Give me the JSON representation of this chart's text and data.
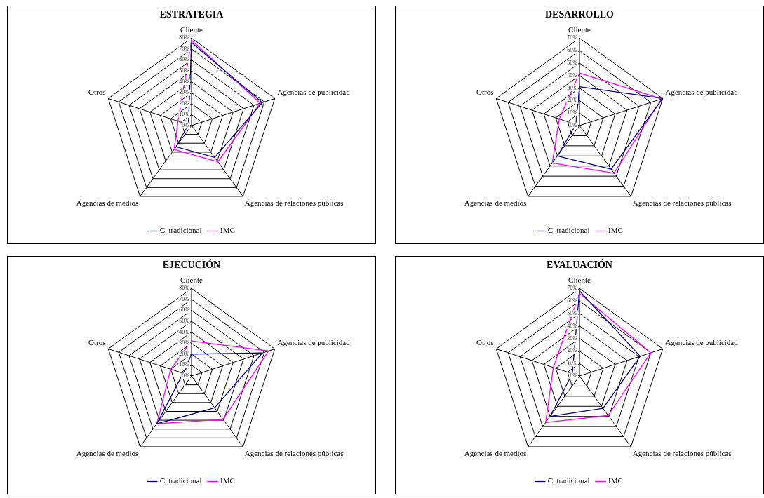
{
  "chart_data": [
    {
      "type": "radar",
      "title": "ESTRATEGIA",
      "categories": [
        "Cliente",
        "Agencias de publicidad",
        "Agencias de relaciones públicas",
        "Agencias de medios",
        "Otros"
      ],
      "ylim": [
        0,
        80
      ],
      "yticks": [
        {
          "value": 0,
          "label": "0%"
        },
        {
          "value": 10,
          "label": "10%"
        },
        {
          "value": 20,
          "label": "20%"
        },
        {
          "value": 30,
          "label": "30%"
        },
        {
          "value": 40,
          "label": "40%"
        },
        {
          "value": 50,
          "label": "50%"
        },
        {
          "value": 60,
          "label": "60%"
        },
        {
          "value": 70,
          "label": "70%"
        },
        {
          "value": 80,
          "label": "80%"
        }
      ],
      "grid": true,
      "legend": "bottom",
      "marker": "none",
      "series": [
        {
          "name": "C. tradicional",
          "color": "#000080",
          "values": [
            76,
            68,
            36,
            24,
            3
          ]
        },
        {
          "name": "IMC",
          "color": "#ff00ff",
          "values": [
            78,
            66,
            41,
            27,
            13
          ]
        }
      ]
    },
    {
      "type": "radar",
      "title": "DESARROLLO",
      "categories": [
        "Cliente",
        "Agencias de publicidad",
        "Agencias de relaciones públicas",
        "Agencias de medios",
        "Otros"
      ],
      "ylim": [
        0,
        70
      ],
      "yticks": [
        {
          "value": 0,
          "label": "0%"
        },
        {
          "value": 10,
          "label": "10%"
        },
        {
          "value": 20,
          "label": "20%"
        },
        {
          "value": 30,
          "label": "30%"
        },
        {
          "value": 40,
          "label": "40%"
        },
        {
          "value": 50,
          "label": "50%"
        },
        {
          "value": 60,
          "label": "60%"
        },
        {
          "value": 70,
          "label": "70%"
        }
      ],
      "grid": true,
      "legend": "bottom",
      "marker": "none",
      "series": [
        {
          "name": "C. tradicional",
          "color": "#000080",
          "values": [
            31,
            70,
            43,
            30,
            3
          ]
        },
        {
          "name": "IMC",
          "color": "#ff00ff",
          "values": [
            42,
            69,
            47,
            37,
            17
          ]
        }
      ]
    },
    {
      "type": "radar",
      "title": "EJECUCIÓN",
      "categories": [
        "Cliente",
        "Agencias de publicidad",
        "Agencias de relaciones públicas",
        "Agencias de medios",
        "Otros"
      ],
      "ylim": [
        0,
        80
      ],
      "yticks": [
        {
          "value": 0,
          "label": "0%"
        },
        {
          "value": 10,
          "label": "10%"
        },
        {
          "value": 20,
          "label": "20%"
        },
        {
          "value": 30,
          "label": "30%"
        },
        {
          "value": 40,
          "label": "40%"
        },
        {
          "value": 50,
          "label": "50%"
        },
        {
          "value": 60,
          "label": "60%"
        },
        {
          "value": 70,
          "label": "70%"
        },
        {
          "value": 80,
          "label": "80%"
        }
      ],
      "grid": true,
      "legend": "bottom",
      "marker": "none",
      "series": [
        {
          "name": "C. tradicional",
          "color": "#000080",
          "values": [
            20,
            68,
            36,
            54,
            8
          ]
        },
        {
          "name": "IMC",
          "color": "#ff00ff",
          "values": [
            32,
            74,
            49,
            54,
            20
          ]
        }
      ]
    },
    {
      "type": "radar",
      "title": "EVALUACIÓN",
      "categories": [
        "Cliente",
        "Agencias de publicidad",
        "Agencias de relaciones públicas",
        "Agencias de medios",
        "Otros"
      ],
      "ylim": [
        0,
        70
      ],
      "yticks": [
        {
          "value": 0,
          "label": "0%"
        },
        {
          "value": 10,
          "label": "10%"
        },
        {
          "value": 20,
          "label": "20%"
        },
        {
          "value": 30,
          "label": "30%"
        },
        {
          "value": 40,
          "label": "40%"
        },
        {
          "value": 50,
          "label": "50%"
        },
        {
          "value": 60,
          "label": "60%"
        },
        {
          "value": 70,
          "label": "70%"
        }
      ],
      "grid": true,
      "legend": "bottom",
      "marker": "none",
      "series": [
        {
          "name": "C. tradicional",
          "color": "#000080",
          "values": [
            68,
            51,
            32,
            40,
            6
          ]
        },
        {
          "name": "IMC",
          "color": "#ff00ff",
          "values": [
            66,
            60,
            39,
            46,
            22
          ]
        }
      ]
    }
  ]
}
